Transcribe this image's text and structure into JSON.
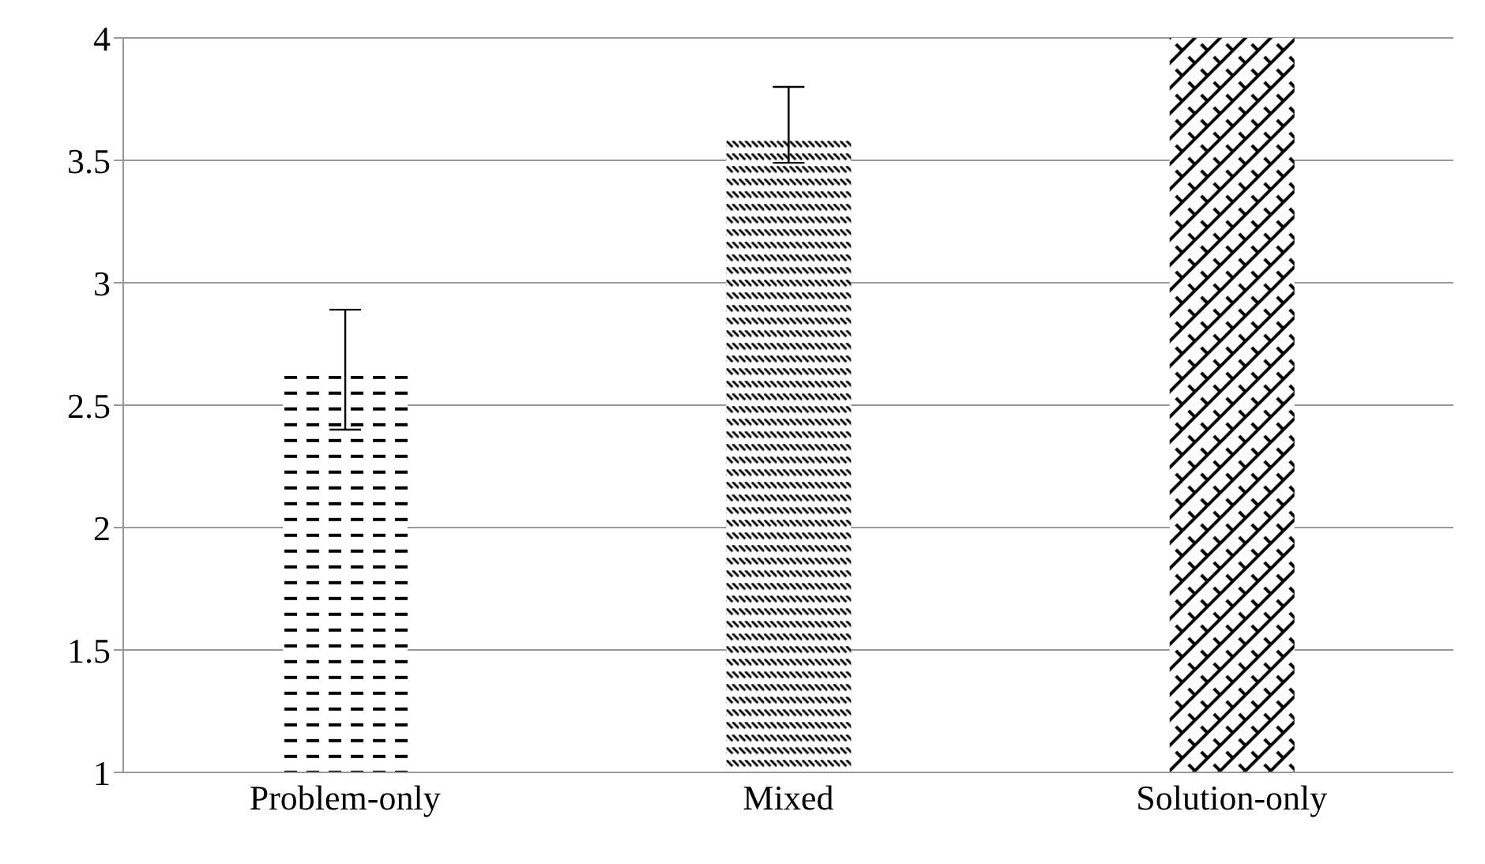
{
  "chart_data": {
    "type": "bar",
    "categories": [
      "Problem-only",
      "Mixed",
      "Solution-only"
    ],
    "values": [
      2.62,
      3.58,
      4
    ],
    "colors": [
      "#000000",
      "#000000",
      "#000000"
    ],
    "errors": [
      [
        2.4,
        2.89
      ],
      [
        3.49,
        3.8
      ],
      null
    ],
    "ylim": [
      1,
      4
    ],
    "yticks": [
      1,
      1.5,
      2,
      2.5,
      3,
      3.5,
      4
    ],
    "grid": "y"
  }
}
